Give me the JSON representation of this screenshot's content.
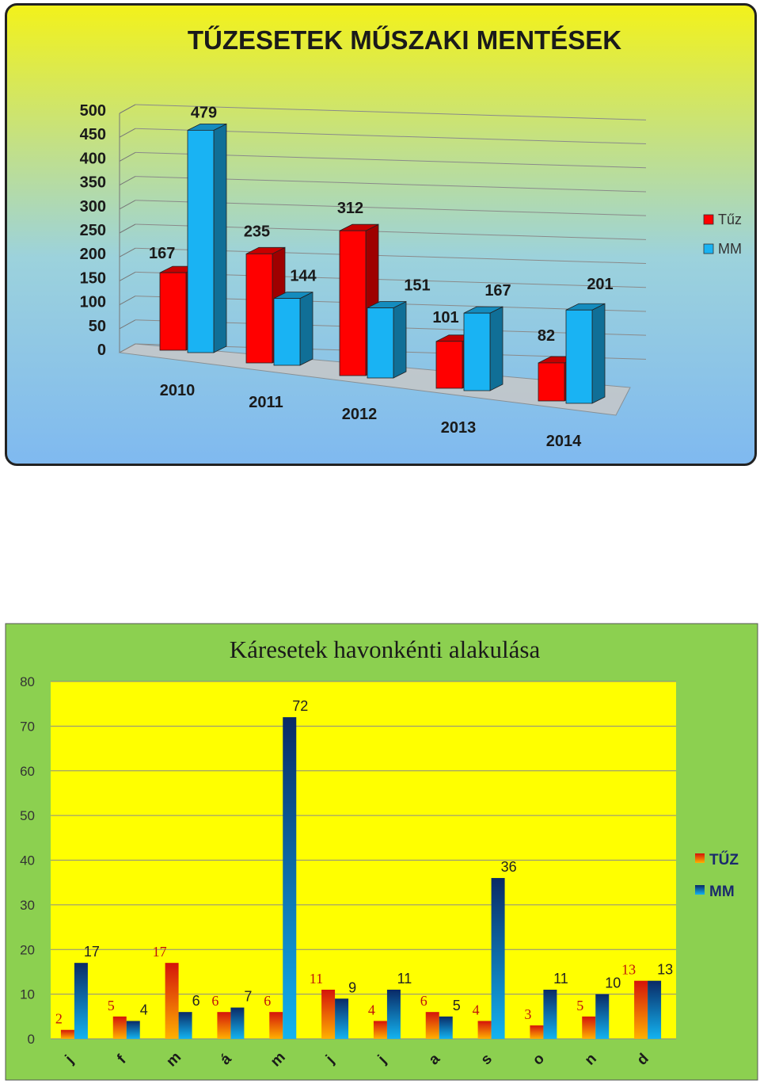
{
  "charts": [
    {
      "type": "bar",
      "title": "TŰZESETEK MŰSZAKI MENTÉSEK",
      "categories": [
        "2010",
        "2011",
        "2012",
        "2013",
        "2014"
      ],
      "series": [
        {
          "name": "Tűz",
          "values": [
            167,
            235,
            312,
            101,
            82
          ],
          "color": "#ff0000"
        },
        {
          "name": "MM",
          "values": [
            479,
            144,
            151,
            167,
            201
          ],
          "color": "#19b3f3"
        }
      ],
      "yticks": [
        "0",
        "50",
        "100",
        "150",
        "200",
        "250",
        "300",
        "350",
        "400",
        "450",
        "500"
      ],
      "ylim": [
        0,
        500
      ],
      "legend": "right",
      "grid": true,
      "style": "3d-column",
      "background": [
        "#f3f21a",
        "#9cd2dc",
        "#7fb9f0"
      ]
    },
    {
      "type": "bar",
      "title": "Káresetek havonkénti alakulása",
      "categories": [
        "j",
        "f",
        "m",
        "á",
        "m",
        "j",
        "j",
        "a",
        "s",
        "o",
        "n",
        "d"
      ],
      "series": [
        {
          "name": "TŰZ",
          "values": [
            2,
            5,
            17,
            6,
            6,
            11,
            4,
            6,
            4,
            3,
            5,
            13
          ],
          "color": "#e34010"
        },
        {
          "name": "MM",
          "values": [
            17,
            4,
            6,
            7,
            72,
            9,
            11,
            5,
            36,
            11,
            10,
            13
          ],
          "color": "#0b3470"
        }
      ],
      "yticks": [
        "0",
        "10",
        "20",
        "30",
        "40",
        "50",
        "60",
        "70",
        "80"
      ],
      "ylim": [
        0,
        80
      ],
      "legend": "right",
      "grid": true,
      "background": [
        "#8cd050",
        "#ffff00"
      ]
    }
  ]
}
